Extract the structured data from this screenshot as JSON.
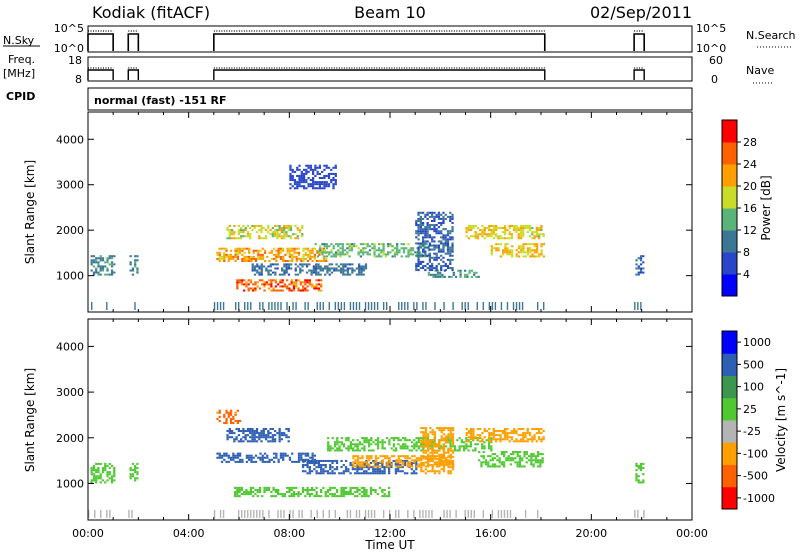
{
  "header": {
    "station": "Kodiak (fitACF)",
    "beam": "Beam 10",
    "date": "02/Sep/2011"
  },
  "top_panels": {
    "nsky_label": "N.Sky",
    "nsky_ticks": [
      "10^5",
      "10^0"
    ],
    "nsearch_label": "N.Search",
    "nsearch_ticks": [
      "10^5",
      "10^0"
    ],
    "freq_label_1": "Freq.",
    "freq_label_2": "[MHz]",
    "freq_ticks": [
      "18",
      "8"
    ],
    "nave_label": "Nave",
    "nave_ticks": [
      "60",
      "0"
    ],
    "cpid_label": "CPID",
    "cpid_value": "normal (fast) -151 RF"
  },
  "chart_data": [
    {
      "type": "heatmap",
      "name": "power-panel",
      "ylabel": "Slant Range [km]",
      "xlabel": "Time UT",
      "yticks": [
        "1000",
        "2000",
        "3000",
        "4000"
      ],
      "xticks": [
        "00:00",
        "04:00",
        "08:00",
        "12:00",
        "16:00",
        "20:00",
        "00:00"
      ],
      "ylim": [
        200,
        4600
      ],
      "xlim": [
        0,
        24
      ],
      "colorbar": {
        "label": "Power [dB]",
        "ticks": [
          "4",
          "8",
          "12",
          "16",
          "20",
          "24",
          "28"
        ],
        "range": [
          0,
          32
        ],
        "colors": [
          "#0000ff",
          "#2846c8",
          "#3c7896",
          "#5ab478",
          "#c8dc28",
          "#ffa000",
          "#ff6000",
          "#ff0000"
        ]
      },
      "data_windows_hours": [
        [
          0.0,
          1.0
        ],
        [
          1.6,
          2.0
        ],
        [
          5.0,
          18.15
        ],
        [
          21.7,
          22.1
        ]
      ],
      "echo_regions": [
        {
          "t": [
            0.1,
            1.0
          ],
          "r": [
            1000,
            1450
          ],
          "value": 11
        },
        {
          "t": [
            1.65,
            2.0
          ],
          "r": [
            1000,
            1450
          ],
          "value": 11
        },
        {
          "t": [
            5.1,
            9.5
          ],
          "r": [
            1300,
            1600
          ],
          "value": 22
        },
        {
          "t": [
            5.8,
            9.3
          ],
          "r": [
            650,
            900
          ],
          "value": 26
        },
        {
          "t": [
            5.5,
            8.5
          ],
          "r": [
            1800,
            2100
          ],
          "value": 18
        },
        {
          "t": [
            6.5,
            11.0
          ],
          "r": [
            1000,
            1250
          ],
          "value": 9
        },
        {
          "t": [
            9.0,
            13.5
          ],
          "r": [
            1400,
            1700
          ],
          "value": 14
        },
        {
          "t": [
            13.5,
            15.5
          ],
          "r": [
            950,
            1100
          ],
          "value": 12
        },
        {
          "t": [
            13.0,
            14.5
          ],
          "r": [
            1100,
            2400
          ],
          "value": 8
        },
        {
          "t": [
            15.0,
            18.1
          ],
          "r": [
            1800,
            2100
          ],
          "value": 19
        },
        {
          "t": [
            16.0,
            18.1
          ],
          "r": [
            1400,
            1700
          ],
          "value": 20
        },
        {
          "t": [
            8.0,
            9.8
          ],
          "r": [
            2900,
            3400
          ],
          "value": 5
        },
        {
          "t": [
            21.75,
            22.05
          ],
          "r": [
            1000,
            1450
          ],
          "value": 8
        }
      ]
    },
    {
      "type": "heatmap",
      "name": "velocity-panel",
      "ylabel": "Slant Range [km]",
      "xlabel": "Time UT",
      "yticks": [
        "1000",
        "2000",
        "3000",
        "4000"
      ],
      "xticks": [
        "00:00",
        "04:00",
        "08:00",
        "12:00",
        "16:00",
        "20:00",
        "00:00"
      ],
      "ylim": [
        200,
        4600
      ],
      "xlim": [
        0,
        24
      ],
      "colorbar": {
        "label": "Velocity [m s^-1]",
        "ticks": [
          "-1000",
          "-500",
          "-100",
          "-25",
          "25",
          "100",
          "500",
          "1000"
        ],
        "colors": [
          "#ff0000",
          "#ff6000",
          "#ffa000",
          "#b4b4b4",
          "#50c832",
          "#3c9650",
          "#2d5fb4",
          "#0000ff"
        ]
      },
      "echo_regions": [
        {
          "t": [
            0.1,
            1.0
          ],
          "r": [
            1000,
            1450
          ],
          "value": 0
        },
        {
          "t": [
            1.65,
            2.0
          ],
          "r": [
            1000,
            1450
          ],
          "value": 0
        },
        {
          "t": [
            5.1,
            9.0
          ],
          "r": [
            1450,
            1650
          ],
          "value": 150
        },
        {
          "t": [
            5.5,
            8.0
          ],
          "r": [
            1900,
            2200
          ],
          "value": 300
        },
        {
          "t": [
            5.8,
            12.0
          ],
          "r": [
            700,
            900
          ],
          "value": 0
        },
        {
          "t": [
            8.5,
            13.0
          ],
          "r": [
            1200,
            1500
          ],
          "value": 200
        },
        {
          "t": [
            10.5,
            14.5
          ],
          "r": [
            1350,
            1600
          ],
          "value": -300
        },
        {
          "t": [
            9.5,
            16.0
          ],
          "r": [
            1700,
            2000
          ],
          "value": 0
        },
        {
          "t": [
            13.2,
            14.5
          ],
          "r": [
            1200,
            2200
          ],
          "value": -200
        },
        {
          "t": [
            15.0,
            18.1
          ],
          "r": [
            1900,
            2200
          ],
          "value": -300
        },
        {
          "t": [
            15.5,
            18.1
          ],
          "r": [
            1350,
            1700
          ],
          "value": 0
        },
        {
          "t": [
            5.1,
            6.0
          ],
          "r": [
            2300,
            2600
          ],
          "value": -600
        },
        {
          "t": [
            21.75,
            22.05
          ],
          "r": [
            1000,
            1450
          ],
          "value": 0
        }
      ]
    }
  ]
}
